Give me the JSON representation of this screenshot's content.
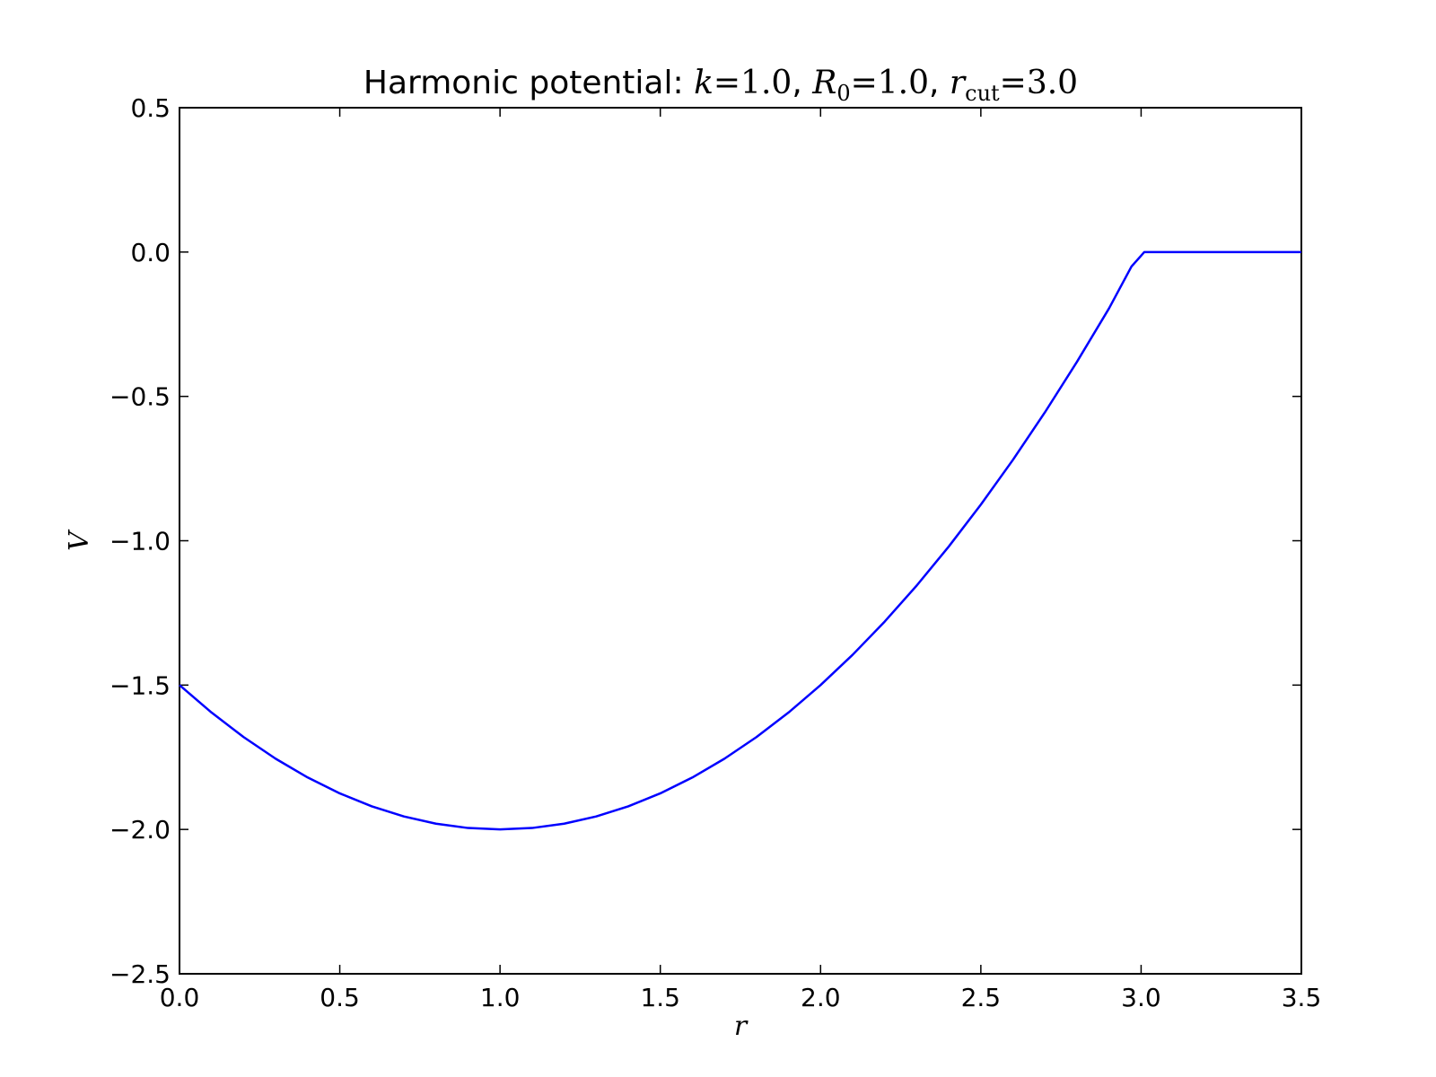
{
  "chart_data": {
    "type": "line",
    "title": {
      "prefix": "Harmonic potential: ",
      "k_sym": "k",
      "k_val": "=1.0",
      "sep1": ", ",
      "r0_sym": "R",
      "r0_sub": "0",
      "r0_val": "=1.0",
      "sep2": ", ",
      "rcut_sym": "r",
      "rcut_sub": "cut",
      "rcut_val": "=3.0"
    },
    "xlabel": "r",
    "ylabel": "V",
    "xlim": [
      0.0,
      3.5
    ],
    "ylim": [
      -2.5,
      0.5
    ],
    "xticks": [
      0.0,
      0.5,
      1.0,
      1.5,
      2.0,
      2.5,
      3.0,
      3.5
    ],
    "xtick_labels": [
      "0.0",
      "0.5",
      "1.0",
      "1.5",
      "2.0",
      "2.5",
      "3.0",
      "3.5"
    ],
    "yticks": [
      0.5,
      0.0,
      -0.5,
      -1.0,
      -1.5,
      -2.0,
      -2.5
    ],
    "ytick_labels": [
      "0.5",
      "0.0",
      "−0.5",
      "−1.0",
      "−1.5",
      "−2.0",
      "−2.5"
    ],
    "grid": false,
    "series": [
      {
        "color": "#0000ff",
        "x": [
          0.0,
          0.1,
          0.2,
          0.3,
          0.4,
          0.5,
          0.6,
          0.7,
          0.8,
          0.9,
          1.0,
          1.1,
          1.2,
          1.3,
          1.4,
          1.5,
          1.6,
          1.7,
          1.8,
          1.9,
          2.0,
          2.1,
          2.2,
          2.3,
          2.4,
          2.5,
          2.6,
          2.7,
          2.8,
          2.9,
          2.97,
          3.01,
          3.1,
          3.2,
          3.3,
          3.4,
          3.5
        ],
        "y": [
          -1.5,
          -1.595,
          -1.68,
          -1.755,
          -1.82,
          -1.875,
          -1.92,
          -1.955,
          -1.98,
          -1.995,
          -2.0,
          -1.995,
          -1.98,
          -1.955,
          -1.92,
          -1.875,
          -1.82,
          -1.755,
          -1.68,
          -1.595,
          -1.5,
          -1.395,
          -1.28,
          -1.155,
          -1.02,
          -0.875,
          -0.72,
          -0.555,
          -0.38,
          -0.195,
          -0.05,
          0.0,
          0.0,
          0.0,
          0.0,
          0.0,
          0.0
        ]
      }
    ]
  }
}
